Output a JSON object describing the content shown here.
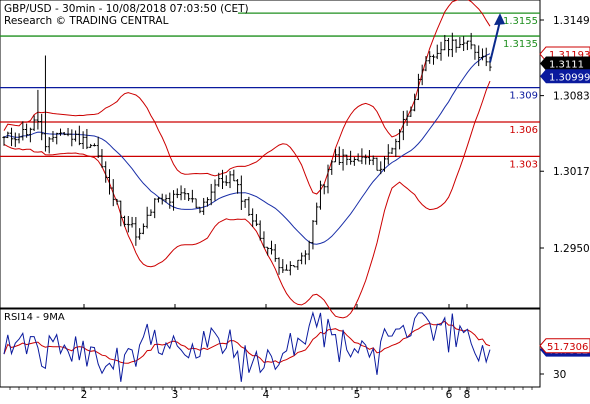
{
  "header": {
    "symbol_line": "GBP/USD - 30min - 10/08/2018 07:03:50 (CET)",
    "source_line": "Research © TRADING CENTRAL"
  },
  "indicator_label": "RSI14 - 9MA",
  "colors": {
    "background": "#ffffff",
    "candle": "#000000",
    "bollinger": "#cc0000",
    "moving_average": "#1a2fa8",
    "resistance_line": "#1f8f1f",
    "pivot_line": "#0a1a9e",
    "support_line": "#cc0000",
    "resistance_label": "#1f8f1f",
    "pivot_label": "#0a1a9e",
    "support_label": "#cc0000",
    "arrow": "#0a2a8c",
    "rsi_line": "#0a1a9e",
    "rsi_ma": "#cc0000",
    "axis_text": "#000000"
  },
  "chart_data": [
    {
      "type": "candlestick",
      "title": "GBP/USD - 30min - 10/08/2018 07:03:50 (CET)",
      "ylim": [
        1.2905,
        1.3168
      ],
      "y_ticks": [
        "1.3149",
        "1.3083",
        "1.3017",
        "1.2950"
      ],
      "x_ticks": [
        "2",
        "3",
        "4",
        "5",
        "6",
        "8"
      ],
      "grid": false,
      "levels": [
        {
          "kind": "resistance",
          "label": "1.3155",
          "value": 1.3155
        },
        {
          "kind": "resistance",
          "label": "1.3135",
          "value": 1.3135
        },
        {
          "kind": "pivot",
          "label": "1.309",
          "value": 1.309
        },
        {
          "kind": "support",
          "label": "1.306",
          "value": 1.306
        },
        {
          "kind": "support",
          "label": "1.303",
          "value": 1.303
        }
      ],
      "price_tags": [
        {
          "kind": "upper-band",
          "label": "1.31193",
          "value": 1.31193
        },
        {
          "kind": "last-price",
          "label": "1.3111",
          "value": 1.3111
        },
        {
          "kind": "moving-average",
          "label": "1.30999",
          "value": 1.30999
        }
      ],
      "forecast_arrow": {
        "from": 1.3112,
        "to": 1.3155
      }
    },
    {
      "type": "line",
      "title": "RSI14 - 9MA",
      "ylim": [
        20,
        80
      ],
      "y_ticks": [
        "30"
      ],
      "series": [
        {
          "name": "RSI14",
          "last": "48.7912",
          "last_value": 48.7912
        },
        {
          "name": "9MA",
          "last": "51.7306",
          "last_value": 51.7306
        }
      ]
    }
  ]
}
